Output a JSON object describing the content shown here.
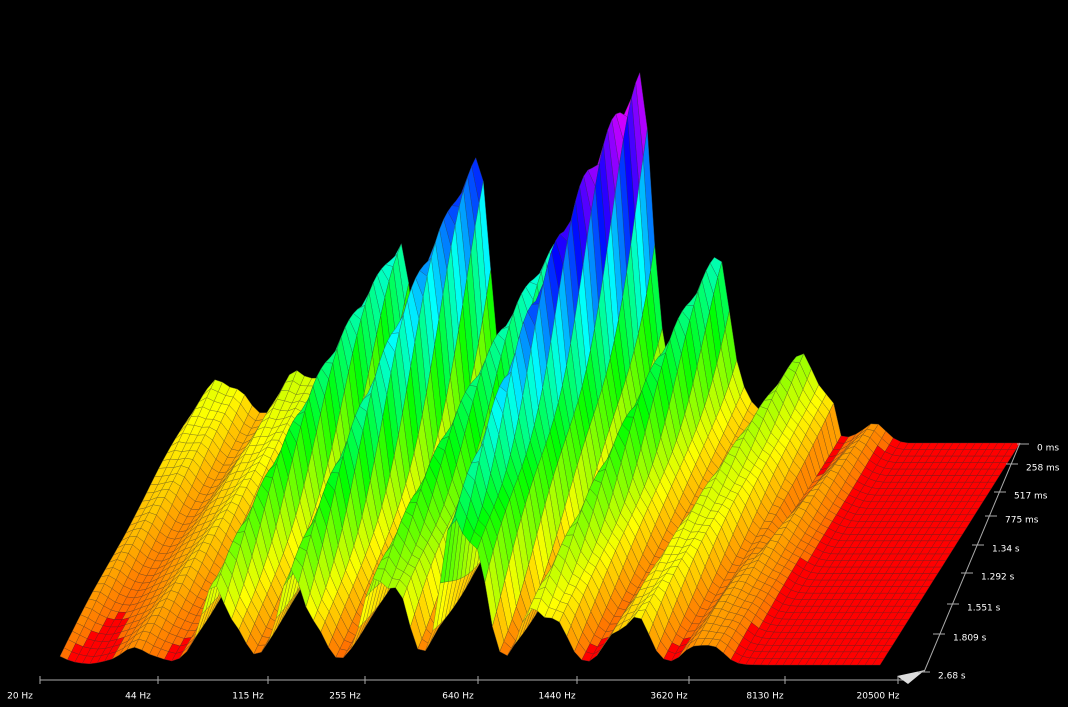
{
  "chart_data": {
    "type": "waterfall",
    "x_labels": [
      "20 Hz",
      "44 Hz",
      "115 Hz",
      "255 Hz",
      "640 Hz",
      "1440 Hz",
      "3620 Hz",
      "8130 Hz",
      "20500 Hz"
    ],
    "z_labels": [
      "0 ms",
      "258 ms",
      "517 ms",
      "775 ms",
      "1.34 s",
      "1.292 s",
      "1.551 s",
      "1.809 s",
      "2.68 s"
    ]
  }
}
